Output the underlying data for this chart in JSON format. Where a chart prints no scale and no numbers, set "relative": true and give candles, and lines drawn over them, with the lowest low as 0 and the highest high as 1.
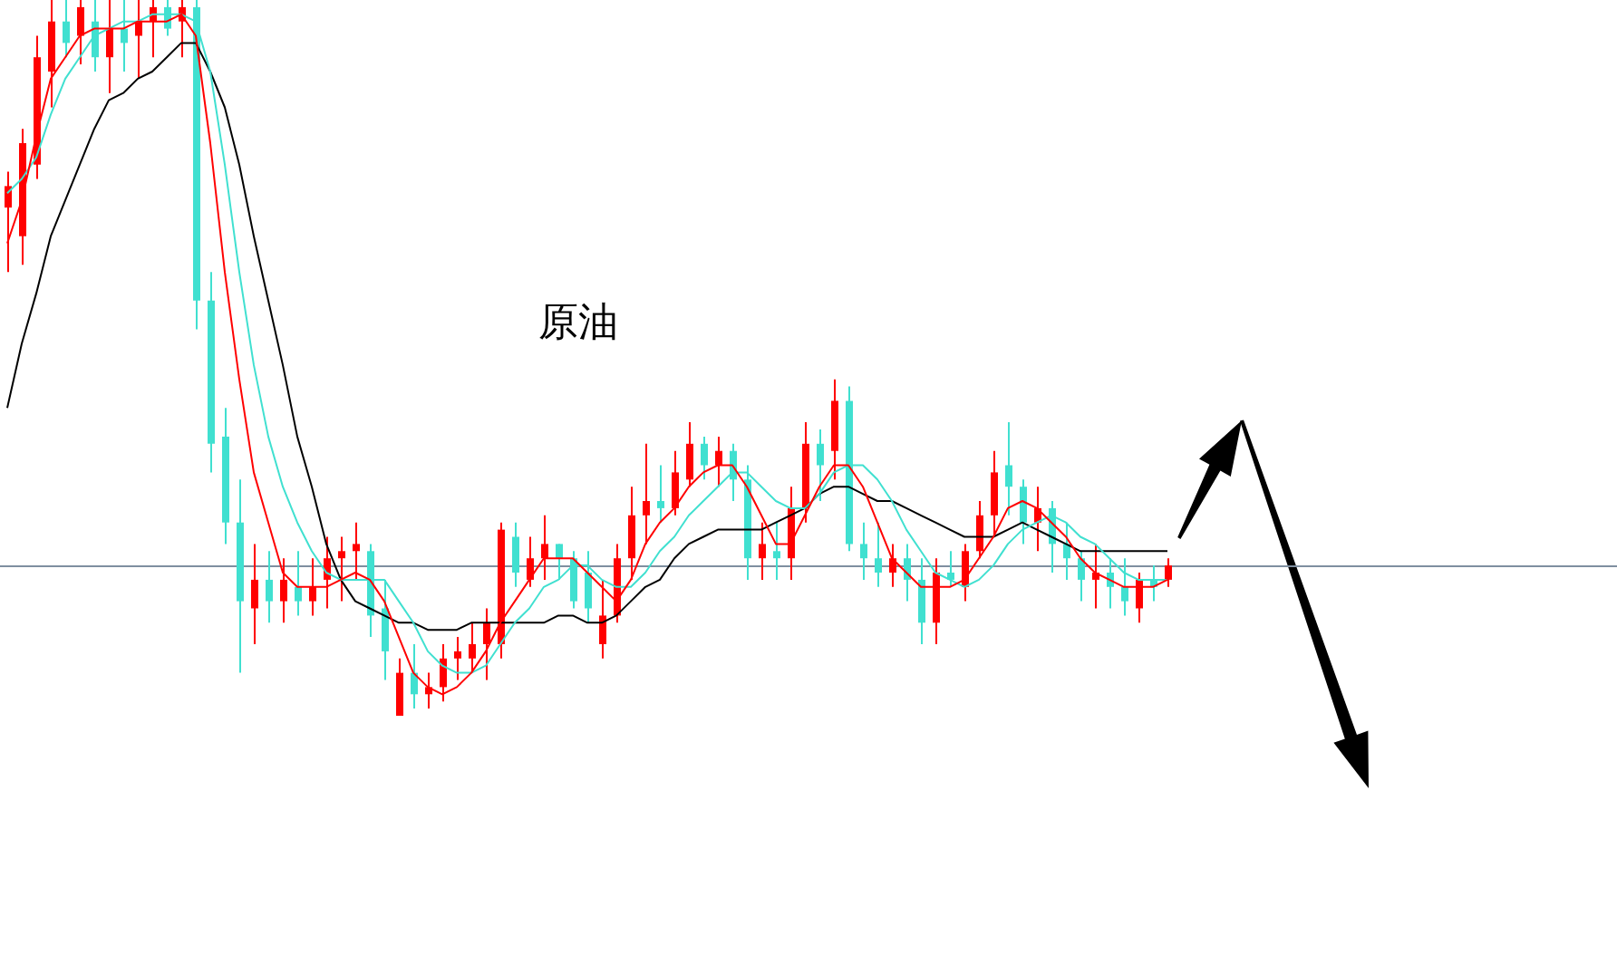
{
  "chart_data": {
    "type": "candlestick",
    "relative": true,
    "legend": false,
    "annotations": [
      "原油"
    ],
    "categories": [
      null,
      null,
      null,
      null,
      null,
      null,
      null,
      null,
      null,
      null,
      null,
      null,
      null,
      null,
      null,
      null,
      null,
      null,
      null,
      null,
      null,
      null,
      null,
      null,
      null,
      null,
      null,
      null,
      null,
      null,
      null,
      null,
      null,
      null,
      null,
      null,
      null,
      null,
      null,
      null,
      null,
      null,
      null,
      null,
      null,
      null,
      null,
      null,
      null,
      null,
      null,
      null,
      null,
      null,
      null,
      null,
      null,
      null,
      null,
      null,
      null,
      null,
      null,
      null,
      null,
      null,
      null,
      null,
      null,
      null,
      null,
      null,
      null,
      null,
      null,
      null,
      null,
      null,
      null,
      null,
      null
    ],
    "ohlc": [
      [
        0.71,
        0.76,
        0.62,
        0.74
      ],
      [
        0.67,
        0.82,
        0.63,
        0.8
      ],
      [
        0.77,
        0.95,
        0.75,
        0.92
      ],
      [
        0.9,
        1,
        0.85,
        0.97
      ],
      [
        0.97,
        1,
        0.92,
        0.94
      ],
      [
        0.95,
        1,
        0.91,
        0.99
      ],
      [
        0.97,
        1,
        0.9,
        0.92
      ],
      [
        0.92,
        1,
        0.87,
        0.96
      ],
      [
        0.96,
        1,
        0.9,
        0.94
      ],
      [
        0.95,
        1,
        0.89,
        0.97
      ],
      [
        0.97,
        1,
        0.92,
        0.99
      ],
      [
        0.99,
        1,
        0.95,
        0.96
      ],
      [
        0.97,
        1,
        0.92,
        0.99
      ],
      [
        0.99,
        1,
        0.54,
        0.58
      ],
      [
        0.58,
        0.62,
        0.34,
        0.38
      ],
      [
        0.39,
        0.43,
        0.24,
        0.27
      ],
      [
        0.27,
        0.33,
        0.06,
        0.16
      ],
      [
        0.15,
        0.24,
        0.1,
        0.19
      ],
      [
        0.19,
        0.23,
        0.13,
        0.16
      ],
      [
        0.16,
        0.22,
        0.13,
        0.19
      ],
      [
        0.18,
        0.23,
        0.14,
        0.16
      ],
      [
        0.16,
        0.22,
        0.14,
        0.18
      ],
      [
        0.19,
        0.25,
        0.15,
        0.22
      ],
      [
        0.22,
        0.25,
        0.16,
        0.23
      ],
      [
        0.23,
        0.27,
        0.19,
        0.24
      ],
      [
        0.23,
        0.24,
        0.11,
        0.14
      ],
      [
        0.15,
        0.19,
        0.05,
        0.09
      ],
      [
        0,
        0.08,
        0,
        0.06
      ],
      [
        0.06,
        0.1,
        0.01,
        0.03
      ],
      [
        0.03,
        0.06,
        0.01,
        0.04
      ],
      [
        0.04,
        0.1,
        0.02,
        0.08
      ],
      [
        0.08,
        0.11,
        0.05,
        0.09
      ],
      [
        0.08,
        0.13,
        0.06,
        0.1
      ],
      [
        0.1,
        0.15,
        0.05,
        0.13
      ],
      [
        0.1,
        0.27,
        0.08,
        0.26
      ],
      [
        0.25,
        0.27,
        0.18,
        0.2
      ],
      [
        0.19,
        0.25,
        0.18,
        0.22
      ],
      [
        0.22,
        0.28,
        0.19,
        0.24
      ],
      [
        0.24,
        0.24,
        0.19,
        0.22
      ],
      [
        0.22,
        0.23,
        0.15,
        0.16
      ],
      [
        0.2,
        0.23,
        0.13,
        0.15
      ],
      [
        0.1,
        0.19,
        0.08,
        0.14
      ],
      [
        0.14,
        0.24,
        0.13,
        0.22
      ],
      [
        0.22,
        0.32,
        0.19,
        0.28
      ],
      [
        0.28,
        0.38,
        0.24,
        0.3
      ],
      [
        0.3,
        0.35,
        0.27,
        0.29
      ],
      [
        0.29,
        0.37,
        0.28,
        0.34
      ],
      [
        0.33,
        0.41,
        0.32,
        0.38
      ],
      [
        0.38,
        0.39,
        0.33,
        0.35
      ],
      [
        0.35,
        0.39,
        0.32,
        0.37
      ],
      [
        0.37,
        0.38,
        0.3,
        0.33
      ],
      [
        0.33,
        0.35,
        0.19,
        0.22
      ],
      [
        0.22,
        0.27,
        0.19,
        0.24
      ],
      [
        0.23,
        0.27,
        0.19,
        0.22
      ],
      [
        0.22,
        0.32,
        0.19,
        0.29
      ],
      [
        0.29,
        0.41,
        0.27,
        0.38
      ],
      [
        0.38,
        0.4,
        0.3,
        0.35
      ],
      [
        0.37,
        0.47,
        0.33,
        0.44
      ],
      [
        0.44,
        0.46,
        0.23,
        0.24
      ],
      [
        0.24,
        0.27,
        0.19,
        0.22
      ],
      [
        0.22,
        0.27,
        0.18,
        0.2
      ],
      [
        0.2,
        0.24,
        0.18,
        0.22
      ],
      [
        0.22,
        0.24,
        0.16,
        0.19
      ],
      [
        0.19,
        0.22,
        0.1,
        0.13
      ],
      [
        0.13,
        0.22,
        0.1,
        0.2
      ],
      [
        0.2,
        0.23,
        0.18,
        0.19
      ],
      [
        0.18,
        0.24,
        0.16,
        0.23
      ],
      [
        0.23,
        0.3,
        0.22,
        0.28
      ],
      [
        0.28,
        0.37,
        0.25,
        0.34
      ],
      [
        0.35,
        0.41,
        0.28,
        0.32
      ],
      [
        0.32,
        0.33,
        0.24,
        0.27
      ],
      [
        0.27,
        0.32,
        0.23,
        0.29
      ],
      [
        0.29,
        0.3,
        0.2,
        0.24
      ],
      [
        0.24,
        0.27,
        0.19,
        0.22
      ],
      [
        0.22,
        0.23,
        0.16,
        0.19
      ],
      [
        0.19,
        0.24,
        0.15,
        0.2
      ],
      [
        0.2,
        0.22,
        0.15,
        0.18
      ],
      [
        0.18,
        0.22,
        0.14,
        0.16
      ],
      [
        0.15,
        0.2,
        0.13,
        0.19
      ],
      [
        0.19,
        0.21,
        0.16,
        0.18
      ],
      [
        0.19,
        0.22,
        0.18,
        0.21
      ]
    ],
    "colors": [
      "#ff0000",
      "#ff0000",
      "#ff0000",
      "#ff0000",
      "#40e0d0",
      "#ff0000",
      "#40e0d0",
      "#ff0000",
      "#40e0d0",
      "#ff0000",
      "#ff0000",
      "#40e0d0",
      "#ff0000",
      "#40e0d0",
      "#40e0d0",
      "#40e0d0",
      "#40e0d0",
      "#ff0000",
      "#40e0d0",
      "#ff0000",
      "#40e0d0",
      "#ff0000",
      "#ff0000",
      "#ff0000",
      "#ff0000",
      "#40e0d0",
      "#40e0d0",
      "#ff0000",
      "#40e0d0",
      "#ff0000",
      "#ff0000",
      "#ff0000",
      "#ff0000",
      "#ff0000",
      "#ff0000",
      "#40e0d0",
      "#ff0000",
      "#ff0000",
      "#40e0d0",
      "#40e0d0",
      "#40e0d0",
      "#ff0000",
      "#ff0000",
      "#ff0000",
      "#ff0000",
      "#40e0d0",
      "#ff0000",
      "#ff0000",
      "#40e0d0",
      "#ff0000",
      "#40e0d0",
      "#40e0d0",
      "#ff0000",
      "#40e0d0",
      "#ff0000",
      "#ff0000",
      "#40e0d0",
      "#ff0000",
      "#40e0d0",
      "#40e0d0",
      "#40e0d0",
      "#ff0000",
      "#40e0d0",
      "#40e0d0",
      "#ff0000",
      "#40e0d0",
      "#ff0000",
      "#ff0000",
      "#ff0000",
      "#40e0d0",
      "#40e0d0",
      "#ff0000",
      "#40e0d0",
      "#40e0d0",
      "#40e0d0",
      "#ff0000",
      "#40e0d0",
      "#40e0d0",
      "#ff0000",
      "#40e0d0",
      "#ff0000"
    ],
    "series": [
      {
        "type": "line",
        "color": "#ff0000",
        "values": [
          0.66,
          0.72,
          0.81,
          0.89,
          0.92,
          0.95,
          0.96,
          0.96,
          0.96,
          0.97,
          0.97,
          0.97,
          0.98,
          0.95,
          0.8,
          0.62,
          0.47,
          0.34,
          0.27,
          0.2,
          0.18,
          0.18,
          0.18,
          0.19,
          0.2,
          0.19,
          0.16,
          0.11,
          0.06,
          0.04,
          0.03,
          0.04,
          0.06,
          0.09,
          0.13,
          0.16,
          0.19,
          0.22,
          0.22,
          0.22,
          0.2,
          0.18,
          0.16,
          0.19,
          0.24,
          0.27,
          0.29,
          0.32,
          0.34,
          0.35,
          0.35,
          0.32,
          0.28,
          0.24,
          0.24,
          0.28,
          0.32,
          0.35,
          0.35,
          0.32,
          0.27,
          0.22,
          0.2,
          0.18,
          0.18,
          0.18,
          0.19,
          0.22,
          0.25,
          0.29,
          0.3,
          0.29,
          0.27,
          0.25,
          0.22,
          0.2,
          0.19,
          0.18,
          0.18,
          0.18,
          0.19
        ]
      },
      {
        "type": "line",
        "color": "#40e0d0",
        "values": [
          0.73,
          0.75,
          0.78,
          0.84,
          0.89,
          0.92,
          0.95,
          0.96,
          0.97,
          0.97,
          0.98,
          0.98,
          0.98,
          0.97,
          0.9,
          0.77,
          0.62,
          0.49,
          0.39,
          0.32,
          0.27,
          0.23,
          0.2,
          0.19,
          0.19,
          0.19,
          0.19,
          0.16,
          0.13,
          0.09,
          0.07,
          0.06,
          0.06,
          0.07,
          0.1,
          0.13,
          0.15,
          0.18,
          0.19,
          0.21,
          0.21,
          0.19,
          0.18,
          0.18,
          0.2,
          0.23,
          0.25,
          0.28,
          0.3,
          0.32,
          0.34,
          0.34,
          0.32,
          0.3,
          0.29,
          0.29,
          0.31,
          0.34,
          0.35,
          0.35,
          0.33,
          0.3,
          0.26,
          0.23,
          0.2,
          0.19,
          0.18,
          0.19,
          0.21,
          0.24,
          0.26,
          0.27,
          0.28,
          0.27,
          0.25,
          0.24,
          0.22,
          0.2,
          0.19,
          0.19,
          0.19
        ]
      },
      {
        "type": "line",
        "color": "#000000",
        "values": [
          0.43,
          0.52,
          0.59,
          0.67,
          0.72,
          0.77,
          0.82,
          0.86,
          0.87,
          0.89,
          0.9,
          0.92,
          0.94,
          0.94,
          0.9,
          0.85,
          0.77,
          0.67,
          0.58,
          0.49,
          0.39,
          0.32,
          0.24,
          0.19,
          0.16,
          0.15,
          0.14,
          0.13,
          0.13,
          0.12,
          0.12,
          0.12,
          0.13,
          0.13,
          0.13,
          0.13,
          0.13,
          0.13,
          0.14,
          0.14,
          0.13,
          0.13,
          0.14,
          0.16,
          0.18,
          0.19,
          0.22,
          0.24,
          0.25,
          0.26,
          0.26,
          0.26,
          0.26,
          0.27,
          0.28,
          0.29,
          0.31,
          0.32,
          0.32,
          0.31,
          0.3,
          0.3,
          0.29,
          0.28,
          0.27,
          0.26,
          0.25,
          0.25,
          0.25,
          0.26,
          0.27,
          0.26,
          0.25,
          0.24,
          0.23,
          0.23,
          0.23,
          0.23,
          0.23,
          0.23,
          0.23
        ]
      }
    ],
    "ref_lines": [
      {
        "axis": "y",
        "value": 0.21,
        "color": "#7f8fa0"
      }
    ]
  }
}
